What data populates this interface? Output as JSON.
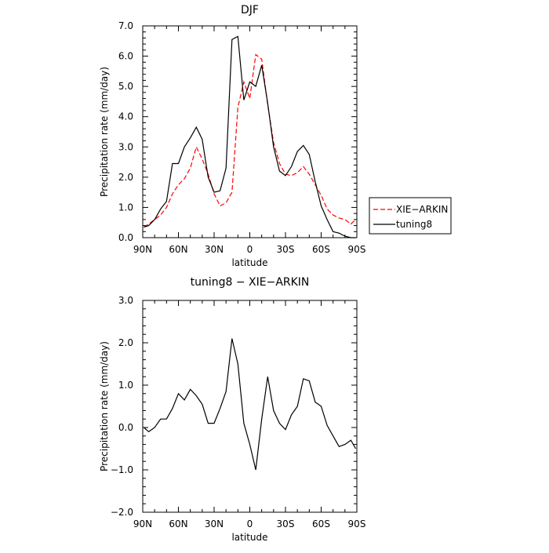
{
  "chart_data": [
    {
      "type": "line",
      "title": "DJF",
      "xlabel": "latitude",
      "ylabel": "Precipitation rate (mm/day)",
      "xlim": [
        90,
        -90
      ],
      "ylim": [
        0,
        7
      ],
      "x_tick_values": [
        90,
        60,
        30,
        0,
        -30,
        -60,
        -90
      ],
      "x_tick_labels": [
        "90N",
        "60N",
        "30N",
        "0",
        "30S",
        "60S",
        "90S"
      ],
      "y_tick_values": [
        0,
        1,
        2,
        3,
        4,
        5,
        6,
        7
      ],
      "y_tick_labels": [
        "0.0",
        "1.0",
        "2.0",
        "3.0",
        "4.0",
        "5.0",
        "6.0",
        "7.0"
      ],
      "legend": "outside-right",
      "series": [
        {
          "name": "XIE−ARKIN",
          "color": "#ff0000",
          "dash": true,
          "x": [
            89,
            85,
            80,
            75,
            70,
            65,
            60,
            55,
            50,
            45,
            40,
            35,
            30,
            25,
            20,
            15,
            10,
            5,
            0,
            -5,
            -10,
            -15,
            -20,
            -25,
            -30,
            -35,
            -40,
            -45,
            -50,
            -55,
            -60,
            -65,
            -70,
            -75,
            -80,
            -85,
            -89
          ],
          "y": [
            0.35,
            0.45,
            0.6,
            0.75,
            1.0,
            1.45,
            1.75,
            1.95,
            2.3,
            3.0,
            2.6,
            2.1,
            1.45,
            1.05,
            1.15,
            1.5,
            4.3,
            5.15,
            4.6,
            6.05,
            5.9,
            4.4,
            3.15,
            2.45,
            2.1,
            2.05,
            2.15,
            2.35,
            2.1,
            1.75,
            1.4,
            0.95,
            0.75,
            0.65,
            0.6,
            0.45,
            0.6
          ]
        },
        {
          "name": "tuning8",
          "color": "#000000",
          "dash": false,
          "x": [
            89,
            85,
            80,
            75,
            70,
            65,
            60,
            55,
            50,
            45,
            40,
            35,
            30,
            25,
            20,
            15,
            10,
            5,
            0,
            -5,
            -10,
            -15,
            -20,
            -25,
            -30,
            -35,
            -40,
            -45,
            -50,
            -55,
            -60,
            -65,
            -70,
            -75,
            -80,
            -85,
            -89
          ],
          "y": [
            0.35,
            0.4,
            0.6,
            0.95,
            1.2,
            2.45,
            2.45,
            3.0,
            3.3,
            3.65,
            3.25,
            2.0,
            1.5,
            1.55,
            2.3,
            6.55,
            6.65,
            4.55,
            5.15,
            5.0,
            5.7,
            4.45,
            3.0,
            2.2,
            2.05,
            2.35,
            2.85,
            3.05,
            2.75,
            1.85,
            1.05,
            0.6,
            0.2,
            0.15,
            0.05,
            0.0,
            0.0
          ]
        }
      ]
    },
    {
      "type": "line",
      "title": "tuning8 − XIE−ARKIN",
      "xlabel": "latitude",
      "ylabel": "Precipitation rate (mm/day)",
      "xlim": [
        90,
        -90
      ],
      "ylim": [
        -2,
        3
      ],
      "x_tick_values": [
        90,
        60,
        30,
        0,
        -30,
        -60,
        -90
      ],
      "x_tick_labels": [
        "90N",
        "60N",
        "30N",
        "0",
        "30S",
        "60S",
        "90S"
      ],
      "y_tick_values": [
        -2,
        -1,
        0,
        1,
        2,
        3
      ],
      "y_tick_labels": [
        "−2.0",
        "−1.0",
        "0.0",
        "1.0",
        "2.0",
        "3.0"
      ],
      "series": [
        {
          "color": "#000000",
          "dash": false,
          "x": [
            89,
            85,
            80,
            75,
            70,
            65,
            60,
            55,
            50,
            45,
            40,
            35,
            30,
            25,
            20,
            15,
            10,
            5,
            0,
            -5,
            -10,
            -15,
            -20,
            -25,
            -30,
            -35,
            -40,
            -45,
            -50,
            -55,
            -60,
            -65,
            -70,
            -75,
            -80,
            -85,
            -89
          ],
          "y": [
            0.0,
            -0.1,
            0.0,
            0.2,
            0.2,
            0.45,
            0.8,
            0.65,
            0.9,
            0.75,
            0.55,
            0.1,
            0.1,
            0.45,
            0.85,
            2.1,
            1.5,
            0.1,
            -0.4,
            -1.0,
            0.2,
            1.2,
            0.4,
            0.1,
            -0.05,
            0.3,
            0.5,
            1.15,
            1.1,
            0.6,
            0.5,
            0.05,
            -0.2,
            -0.45,
            -0.4,
            -0.3,
            -0.5
          ]
        }
      ]
    }
  ]
}
